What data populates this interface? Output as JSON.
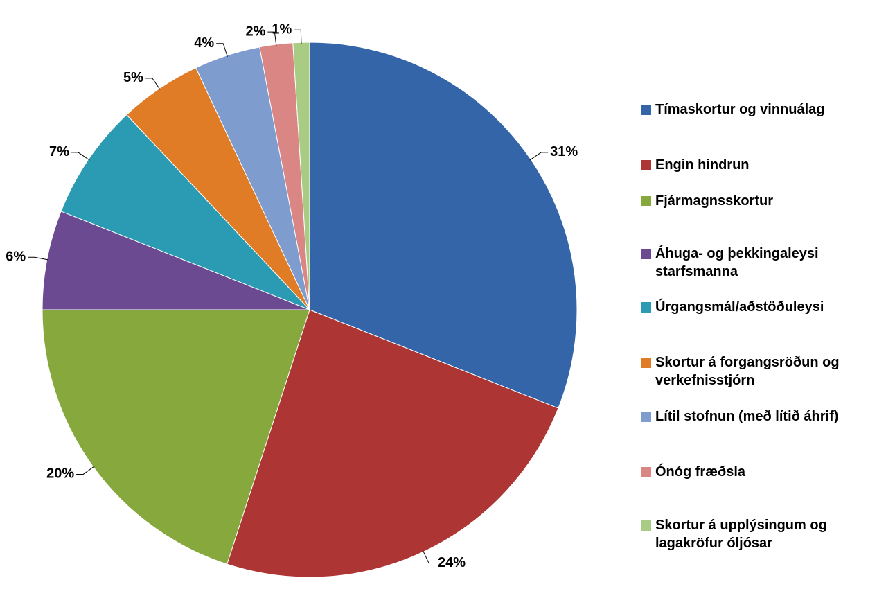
{
  "chart_data": {
    "type": "pie",
    "categories": [
      "Tímaskortur og vinnuálag",
      "Engin hindrun",
      "Fjármagnsskortur",
      "Áhuga- og þekkingaleysi starfsmanna",
      "Úrgangsmál/aðstöðuleysi",
      "Skortur á forgangsröðun og verkefnisstjórn",
      "Lítil stofnun (með lítið áhrif)",
      "Ónóg fræðsla",
      "Skortur á upplýsingum og lagakröfur óljósar"
    ],
    "values": [
      31,
      24,
      20,
      6,
      7,
      5,
      4,
      2,
      1
    ],
    "value_labels": [
      "31%",
      "24%",
      "20%",
      "6%",
      "7%",
      "5%",
      "4%",
      "2%",
      "1%"
    ],
    "colors": [
      "#3465a8",
      "#ad3533",
      "#86a83c",
      "#6b4a91",
      "#2b9bb3",
      "#e07b26",
      "#7f9ccf",
      "#d98685",
      "#a9cc84"
    ],
    "legend": "right"
  }
}
